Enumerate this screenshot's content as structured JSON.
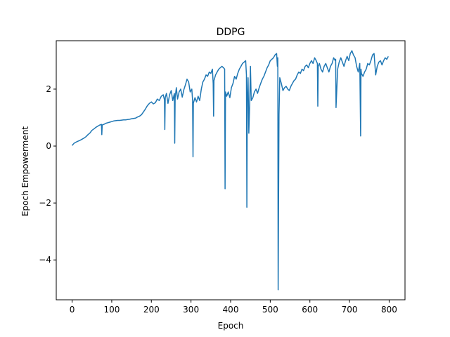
{
  "chart_data": {
    "type": "line",
    "title": "DDPG",
    "xlabel": "Epoch",
    "ylabel": "Epoch Empowerment",
    "xlim": [
      -40,
      840
    ],
    "ylim": [
      -5.4,
      3.7
    ],
    "xticks": [
      0,
      100,
      200,
      300,
      400,
      500,
      600,
      700,
      800
    ],
    "yticks": [
      -4,
      -2,
      0,
      2
    ],
    "ytick_labels": [
      "−4",
      "−2",
      "0",
      "2"
    ],
    "grid": false,
    "series": [
      {
        "color": "#1f77b4",
        "x": [
          0,
          5,
          10,
          15,
          20,
          25,
          30,
          35,
          40,
          45,
          50,
          55,
          60,
          65,
          70,
          74,
          75,
          76,
          80,
          85,
          90,
          95,
          100,
          105,
          110,
          115,
          120,
          125,
          130,
          135,
          140,
          145,
          150,
          155,
          160,
          165,
          170,
          175,
          180,
          185,
          190,
          195,
          200,
          205,
          210,
          215,
          220,
          225,
          230,
          233,
          234,
          235,
          238,
          242,
          246,
          250,
          254,
          258,
          259,
          260,
          263,
          266,
          270,
          274,
          278,
          282,
          286,
          290,
          294,
          298,
          302,
          304,
          305,
          306,
          310,
          314,
          318,
          322,
          326,
          330,
          334,
          338,
          342,
          346,
          350,
          354,
          356,
          357,
          358,
          362,
          366,
          370,
          374,
          378,
          382,
          385,
          386,
          387,
          390,
          394,
          398,
          402,
          406,
          410,
          414,
          418,
          422,
          426,
          430,
          434,
          438,
          440,
          441,
          442,
          444,
          446,
          448,
          450,
          452,
          456,
          460,
          464,
          468,
          472,
          476,
          480,
          484,
          488,
          492,
          496,
          500,
          504,
          508,
          512,
          516,
          518,
          519,
          520,
          522,
          524,
          528,
          532,
          536,
          540,
          544,
          548,
          552,
          556,
          560,
          564,
          568,
          572,
          576,
          580,
          584,
          588,
          592,
          596,
          600,
          604,
          608,
          612,
          616,
          619,
          620,
          621,
          624,
          628,
          632,
          636,
          640,
          644,
          648,
          652,
          656,
          660,
          664,
          665,
          666,
          670,
          674,
          678,
          682,
          686,
          690,
          694,
          698,
          702,
          706,
          710,
          714,
          718,
          722,
          726,
          728,
          729,
          730,
          734,
          738,
          742,
          746,
          750,
          754,
          758,
          762,
          766,
          770,
          774,
          778,
          782,
          786,
          790,
          794,
          798
        ],
        "y": [
          0.02,
          0.1,
          0.14,
          0.17,
          0.2,
          0.24,
          0.28,
          0.33,
          0.4,
          0.46,
          0.55,
          0.6,
          0.66,
          0.7,
          0.74,
          0.76,
          0.4,
          0.74,
          0.76,
          0.8,
          0.82,
          0.84,
          0.86,
          0.88,
          0.89,
          0.9,
          0.9,
          0.91,
          0.92,
          0.92,
          0.93,
          0.94,
          0.96,
          0.97,
          0.98,
          1.02,
          1.05,
          1.1,
          1.2,
          1.3,
          1.42,
          1.5,
          1.55,
          1.48,
          1.52,
          1.65,
          1.6,
          1.75,
          1.8,
          1.62,
          0.58,
          1.7,
          1.85,
          1.5,
          1.8,
          1.95,
          1.6,
          1.85,
          0.1,
          1.7,
          2.05,
          1.65,
          1.9,
          2.0,
          1.72,
          1.98,
          2.15,
          2.35,
          2.25,
          1.9,
          2.0,
          1.6,
          -0.38,
          1.5,
          1.7,
          1.55,
          1.75,
          1.6,
          2.0,
          2.25,
          2.35,
          2.5,
          2.45,
          2.6,
          2.55,
          2.7,
          2.2,
          1.05,
          2.3,
          2.5,
          2.6,
          2.7,
          2.75,
          2.8,
          2.75,
          2.7,
          -1.5,
          1.9,
          1.75,
          1.9,
          1.7,
          2.05,
          2.2,
          2.45,
          2.35,
          2.55,
          2.7,
          2.8,
          2.9,
          2.95,
          3.0,
          2.5,
          -2.15,
          1.6,
          2.4,
          0.45,
          1.5,
          2.8,
          1.6,
          1.7,
          1.9,
          2.0,
          1.85,
          2.05,
          2.2,
          2.35,
          2.45,
          2.6,
          2.75,
          2.85,
          3.0,
          3.05,
          3.1,
          3.2,
          3.25,
          2.8,
          3.1,
          -5.05,
          1.1,
          2.4,
          2.2,
          1.95,
          2.05,
          2.1,
          2.0,
          1.95,
          2.1,
          2.2,
          2.3,
          2.35,
          2.5,
          2.6,
          2.55,
          2.7,
          2.65,
          2.8,
          2.85,
          2.75,
          2.9,
          3.0,
          2.9,
          3.1,
          3.0,
          2.9,
          1.4,
          2.8,
          2.9,
          2.7,
          2.6,
          2.8,
          2.9,
          2.75,
          2.6,
          2.8,
          2.9,
          3.1,
          3.0,
          3.05,
          1.35,
          2.7,
          2.95,
          3.1,
          2.95,
          2.8,
          3.0,
          3.15,
          3.0,
          3.25,
          3.35,
          3.2,
          3.1,
          2.8,
          2.6,
          2.9,
          0.35,
          2.7,
          2.55,
          2.45,
          2.6,
          2.7,
          2.9,
          2.85,
          3.0,
          3.2,
          3.25,
          2.5,
          2.8,
          2.95,
          3.0,
          2.85,
          3.0,
          3.1,
          3.05,
          3.15
        ]
      }
    ]
  }
}
